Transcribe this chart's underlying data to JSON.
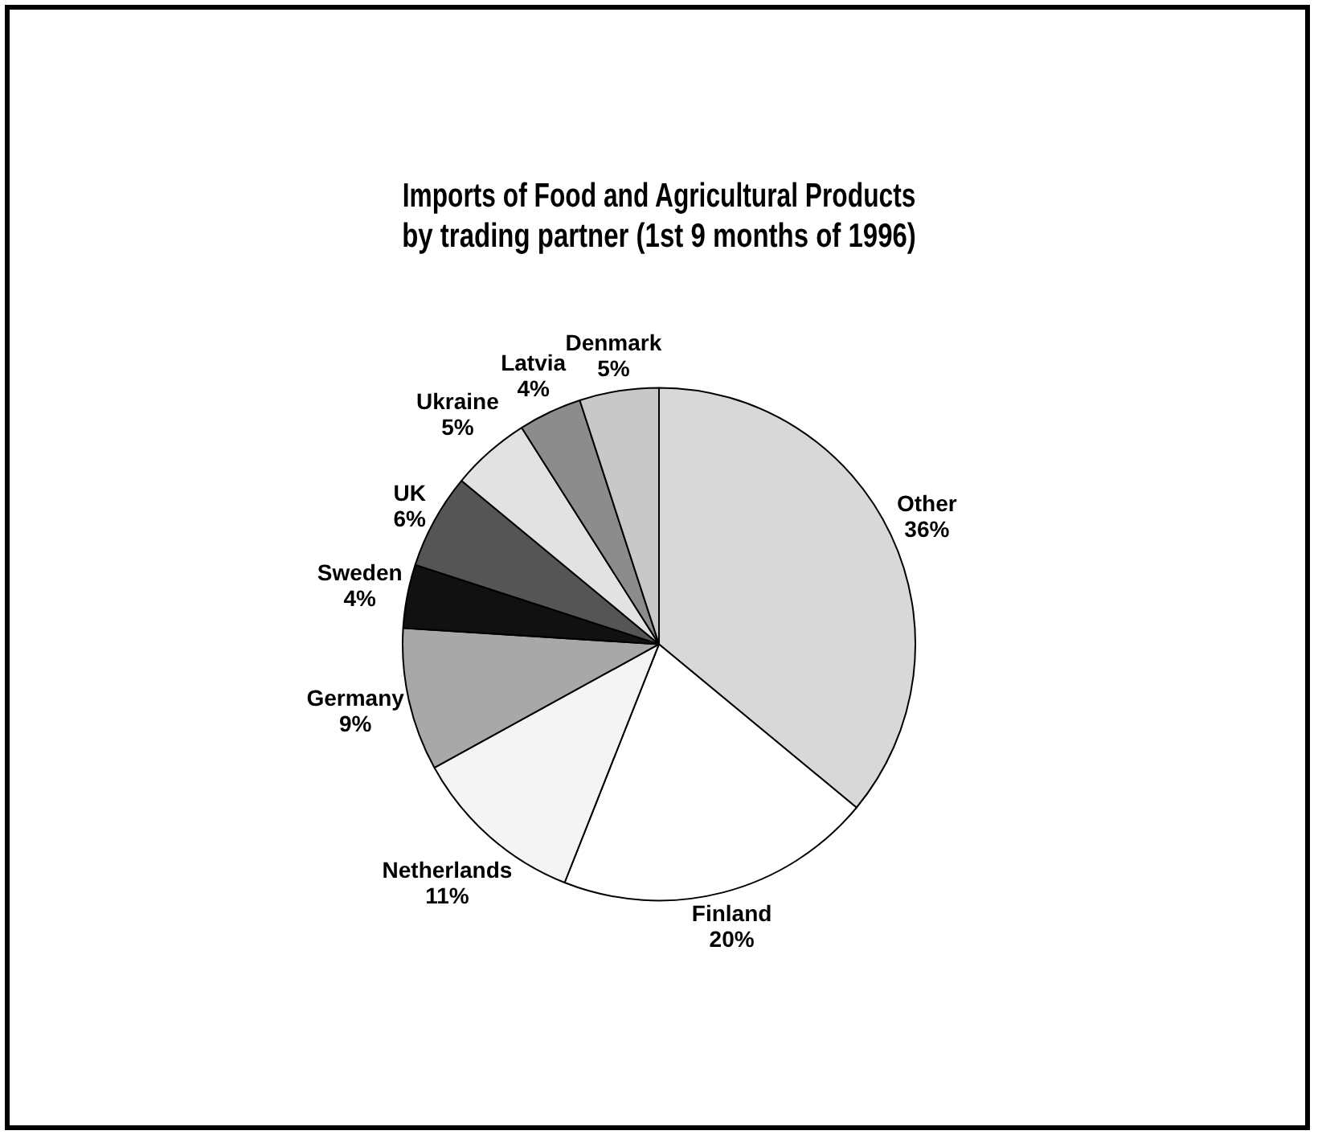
{
  "chart_data": {
    "type": "pie",
    "title": [
      "Imports of Food and Agricultural Products",
      "by trading partner (1st 9 months of 1996)"
    ],
    "categories": [
      "Other",
      "Finland",
      "Netherlands",
      "Germany",
      "Sweden",
      "UK",
      "Ukraine",
      "Latvia",
      "Denmark"
    ],
    "values": [
      36,
      20,
      11,
      9,
      4,
      6,
      5,
      4,
      5
    ],
    "value_labels": [
      "36%",
      "20%",
      "11%",
      "9%",
      "4%",
      "6%",
      "5%",
      "4%",
      "5%"
    ],
    "colors": [
      "#d8d8d8",
      "#ffffff",
      "#f4f4f4",
      "#a8a8a8",
      "#111111",
      "#555555",
      "#e2e2e2",
      "#8c8c8c",
      "#c8c8c8"
    ],
    "legend": false
  }
}
